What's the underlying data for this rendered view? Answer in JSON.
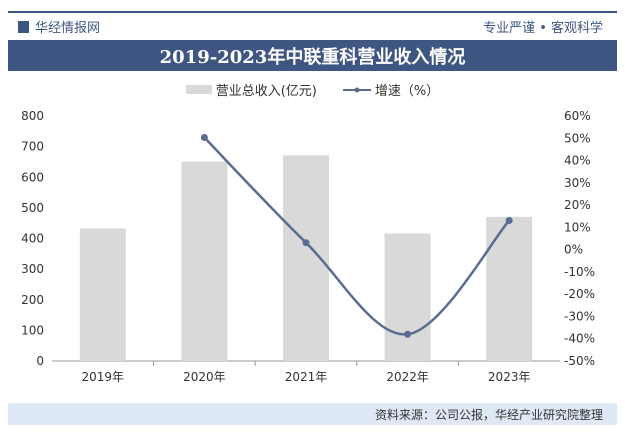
{
  "header": {
    "brand": "华经情报网",
    "slogan": "专业严谨 • 客观科学"
  },
  "footer": {
    "source": "资料来源：公司公报，华经产业研究院整理"
  },
  "colors": {
    "header": "#3f5683",
    "bar": "#d9d9d9",
    "line": "#5a6d8f"
  },
  "chart_data": {
    "type": "bar+line",
    "title": "2019-2023年中联重科营业收入情况",
    "categories": [
      "2019年",
      "2020年",
      "2021年",
      "2022年",
      "2023年"
    ],
    "series": [
      {
        "name": "营业总收入(亿元)",
        "type": "bar",
        "axis": "left",
        "values": [
          433.07,
          651.09,
          671.31,
          416.31,
          470.75
        ]
      },
      {
        "name": "增速（%）",
        "type": "line",
        "axis": "right",
        "values": [
          null,
          50.34,
          3.11,
          -37.99,
          13.08
        ]
      }
    ],
    "left_axis": {
      "range": [
        0,
        800
      ],
      "ticks": [
        "0",
        "100",
        "200",
        "300",
        "400",
        "500",
        "600",
        "700",
        "800"
      ]
    },
    "right_axis": {
      "range": [
        -50,
        60
      ],
      "ticks": [
        "-50%",
        "-40%",
        "-30%",
        "-20%",
        "-10%",
        "0%",
        "10%",
        "20%",
        "30%",
        "40%",
        "50%",
        "60%"
      ]
    },
    "legend": "top",
    "grid": false
  }
}
